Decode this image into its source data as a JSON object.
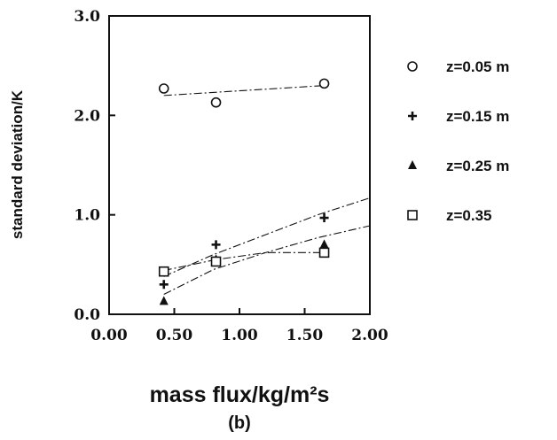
{
  "chart_data": {
    "type": "scatter",
    "panel_label": "(b)",
    "xlabel": "mass  flux/kg/m²s",
    "ylabel": "standard  deviation/K",
    "xlim": [
      0,
      2
    ],
    "ylim": [
      0,
      3
    ],
    "x_ticks": [
      "0.00",
      "0.50",
      "1.00",
      "1.50",
      "2.00"
    ],
    "y_ticks": [
      "0.0",
      "1.0",
      "2.0",
      "3.0"
    ],
    "legend_position": "right",
    "series": [
      {
        "name": "z=0.05  m",
        "marker": "circle",
        "x": [
          0.42,
          0.82,
          1.65
        ],
        "y": [
          2.27,
          2.13,
          2.32
        ],
        "fit": {
          "x": [
            0.42,
            1.65
          ],
          "y": [
            2.2,
            2.3
          ]
        }
      },
      {
        "name": "z=0.15  m",
        "marker": "plus",
        "x": [
          0.42,
          0.82,
          1.65
        ],
        "y": [
          0.3,
          0.7,
          0.97
        ],
        "fit": {
          "x": [
            0.42,
            0.8,
            1.2,
            1.6,
            2.0
          ],
          "y": [
            0.38,
            0.6,
            0.8,
            1.0,
            1.17
          ]
        }
      },
      {
        "name": "z=0.25  m",
        "marker": "triangle",
        "x": [
          0.42,
          0.82,
          1.65
        ],
        "y": [
          0.13,
          0.55,
          0.7
        ],
        "fit": {
          "x": [
            0.42,
            0.8,
            1.2,
            1.6,
            2.0
          ],
          "y": [
            0.2,
            0.45,
            0.62,
            0.77,
            0.89
          ]
        }
      },
      {
        "name": "z=0.35",
        "marker": "square",
        "x": [
          0.42,
          0.82,
          1.65
        ],
        "y": [
          0.43,
          0.53,
          0.62
        ],
        "fit": {
          "x": [
            0.42,
            0.82,
            1.2,
            1.65
          ],
          "y": [
            0.44,
            0.55,
            0.62,
            0.62
          ]
        }
      }
    ]
  }
}
